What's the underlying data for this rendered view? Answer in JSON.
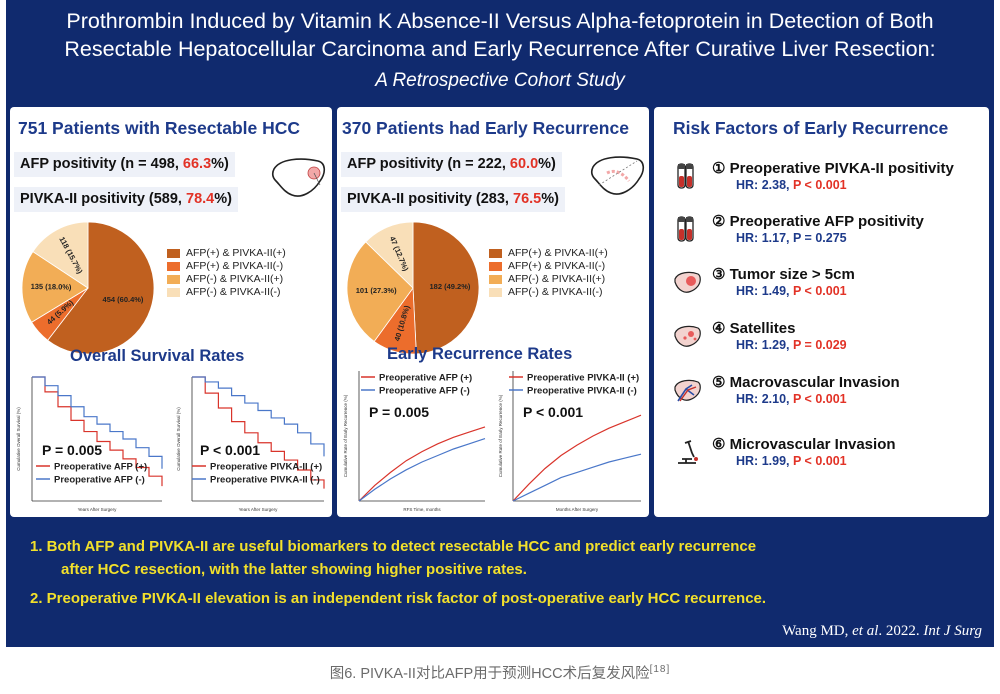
{
  "header": {
    "line1": "Prothrombin Induced by Vitamin K Absence-II Versus Alpha-fetoprotein in Detection of Both",
    "line2": "Resectable Hepatocellular Carcinoma and Early Recurrence After Curative Liver Resection:",
    "line3": "A Retrospective Cohort Study"
  },
  "panel1": {
    "title": "751 Patients with Resectable HCC",
    "afp_text": "AFP positivity (n = 498, ",
    "afp_pct": "66.3",
    "afp_end": "%)",
    "pivka_text": "PIVKA-II positivity (589, ",
    "pivka_pct": "78.4",
    "pivka_end": "%)",
    "survival_title": "Overall Survival Rates"
  },
  "panel2": {
    "title": "370 Patients had Early Recurrence",
    "afp_text": "AFP positivity (n = 222, ",
    "afp_pct": "60.0",
    "afp_end": "%)",
    "pivka_text": "PIVKA-II positivity (283, ",
    "pivka_pct": "76.5",
    "pivka_end": "%)",
    "recurrence_title": "Early Recurrence Rates"
  },
  "legend": [
    {
      "label": "AFP(+) & PIVKA-II(+)",
      "color": "#c0601f"
    },
    {
      "label": "AFP(+) & PIVKA-II(-)",
      "color": "#ec6d2c"
    },
    {
      "label": "AFP(-) & PIVKA-II(+)",
      "color": "#f2ad56"
    },
    {
      "label": "AFP(-) & PIVKA-II(-)",
      "color": "#f9dfb8"
    }
  ],
  "risk": {
    "title": "Risk Factors of Early Recurrence",
    "items": [
      {
        "name": "① Preoperative PIVKA-II positivity",
        "hr": "HR: 2.38, ",
        "p": "P < 0.001",
        "p_red": true,
        "icon": "test-tubes-icon"
      },
      {
        "name": "② Preoperative AFP positivity",
        "hr": "HR: 1.17, ",
        "p": "P = 0.275",
        "p_red": false,
        "icon": "test-tubes-icon"
      },
      {
        "name": "③ Tumor size > 5cm",
        "hr": "HR: 1.49, ",
        "p": "P < 0.001",
        "p_red": true,
        "icon": "liver-tumor-icon"
      },
      {
        "name": "④ Satellites",
        "hr": "HR: 1.29, ",
        "p": "P = 0.029",
        "p_red": true,
        "icon": "liver-satellites-icon"
      },
      {
        "name": "⑤ Macrovascular Invasion",
        "hr": "HR: 2.10, ",
        "p": "P < 0.001",
        "p_red": true,
        "icon": "liver-vessel-icon"
      },
      {
        "name": "⑥ Microvascular Invasion",
        "hr": "HR: 1.99, ",
        "p": "P < 0.001",
        "p_red": true,
        "icon": "microscope-icon"
      }
    ]
  },
  "conclusions": {
    "c1a": "1.  Both AFP and PIVKA-II are useful biomarkers to detect resectable HCC and predict early recurrence",
    "c1b": "after HCC resection, with the latter showing higher positive rates.",
    "c2": "2.  Preoperative PIVKA-II elevation is an independent risk factor of post-operative early HCC recurrence."
  },
  "citation": {
    "author": "Wang MD, ",
    "etal": "et al",
    "year": ". 2022. ",
    "journal": "Int J Surg"
  },
  "caption": {
    "text": "图6. PIVKA-II对比AFP用于预测HCC术后复发风险",
    "ref": "[18]"
  },
  "chart_data": [
    {
      "type": "pie",
      "labels": [
        "AFP(+) & PIVKA-II(+)",
        "AFP(+) & PIVKA-II(-)",
        "AFP(-) & PIVKA-II(+)",
        "AFP(-) & PIVKA-II(-)"
      ],
      "values": [
        454,
        44,
        135,
        118
      ],
      "data_labels": [
        "454 (60.4%)",
        "44 (5.9%)",
        "135 (18.0%)",
        "118 (15.7%)"
      ],
      "colors": [
        "#c0601f",
        "#ec6d2c",
        "#f2ad56",
        "#f9dfb8"
      ]
    },
    {
      "type": "pie",
      "labels": [
        "AFP(+) & PIVKA-II(+)",
        "AFP(+) & PIVKA-II(-)",
        "AFP(-) & PIVKA-II(+)",
        "AFP(-) & PIVKA-II(-)"
      ],
      "values": [
        182,
        40,
        101,
        47
      ],
      "data_labels": [
        "182 (49.2%)",
        "40 (10.8%)",
        "101 (27.3%)",
        "47 (12.7%)"
      ],
      "colors": [
        "#c0601f",
        "#ec6d2c",
        "#f2ad56",
        "#f9dfb8"
      ]
    },
    {
      "type": "line",
      "xlabel": "Years After Surgery",
      "ylabel": "Cumulative Overall Survival (%)",
      "annotation": "P = 0.005",
      "xlim": [
        0,
        10
      ],
      "ylim": [
        0,
        100
      ],
      "series": [
        {
          "name": "Preoperative AFP (+)",
          "color": "#d9342b",
          "x": [
            0,
            1,
            2,
            3,
            4,
            5,
            6,
            7,
            8,
            9,
            10
          ],
          "y": [
            100,
            88,
            76,
            65,
            56,
            48,
            41,
            34,
            27,
            20,
            12
          ]
        },
        {
          "name": "Preoperative AFP (-)",
          "color": "#4a77c9",
          "x": [
            0,
            1,
            2,
            3,
            4,
            5,
            6,
            7,
            8,
            9,
            10
          ],
          "y": [
            100,
            93,
            85,
            76,
            68,
            62,
            56,
            50,
            43,
            36,
            26
          ]
        }
      ]
    },
    {
      "type": "line",
      "xlabel": "Years After Surgery",
      "ylabel": "Cumulative Overall Survival (%)",
      "annotation": "P < 0.001",
      "xlim": [
        0,
        10
      ],
      "ylim": [
        0,
        100
      ],
      "series": [
        {
          "name": "Preoperative PIVKA-II (+)",
          "color": "#d9342b",
          "x": [
            0,
            1,
            2,
            3,
            4,
            5,
            6,
            7,
            8,
            9,
            10
          ],
          "y": [
            100,
            87,
            75,
            64,
            55,
            47,
            40,
            33,
            25,
            17,
            10
          ]
        },
        {
          "name": "Preoperative PIVKA-II (-)",
          "color": "#4a77c9",
          "x": [
            0,
            1,
            2,
            3,
            4,
            5,
            6,
            7,
            8,
            9,
            10
          ],
          "y": [
            100,
            96,
            91,
            85,
            79,
            73,
            67,
            62,
            55,
            46,
            36
          ]
        }
      ]
    },
    {
      "type": "line",
      "xlabel": "RFS Time, months",
      "ylabel": "Cumulative Rate of Early Recurrence (%)",
      "annotation": "P = 0.005",
      "xlim": [
        0,
        24
      ],
      "ylim": [
        0,
        100
      ],
      "series": [
        {
          "name": "Preoperative AFP (+)",
          "color": "#d9342b",
          "x": [
            0,
            3,
            6,
            9,
            12,
            15,
            18,
            21,
            24
          ],
          "y": [
            0,
            12,
            22,
            31,
            38,
            44,
            49,
            53,
            57
          ]
        },
        {
          "name": "Preoperative AFP (-)",
          "color": "#4a77c9",
          "x": [
            0,
            3,
            6,
            9,
            12,
            15,
            18,
            21,
            24
          ],
          "y": [
            0,
            9,
            17,
            24,
            30,
            35,
            40,
            44,
            48
          ]
        }
      ]
    },
    {
      "type": "line",
      "xlabel": "Months After Surgery",
      "ylabel": "Cumulative Rate of Early Recurrence (%)",
      "annotation": "P < 0.001",
      "xlim": [
        0,
        24
      ],
      "ylim": [
        0,
        100
      ],
      "series": [
        {
          "name": "Preoperative PIVKA-II (+)",
          "color": "#d9342b",
          "x": [
            0,
            3,
            6,
            9,
            12,
            15,
            18,
            21,
            24
          ],
          "y": [
            0,
            13,
            25,
            35,
            43,
            50,
            56,
            61,
            66
          ]
        },
        {
          "name": "Preoperative PIVKA-II (-)",
          "color": "#4a77c9",
          "x": [
            0,
            3,
            6,
            9,
            12,
            15,
            18,
            21,
            24
          ],
          "y": [
            0,
            6,
            12,
            18,
            22,
            26,
            30,
            33,
            36
          ]
        }
      ]
    }
  ]
}
